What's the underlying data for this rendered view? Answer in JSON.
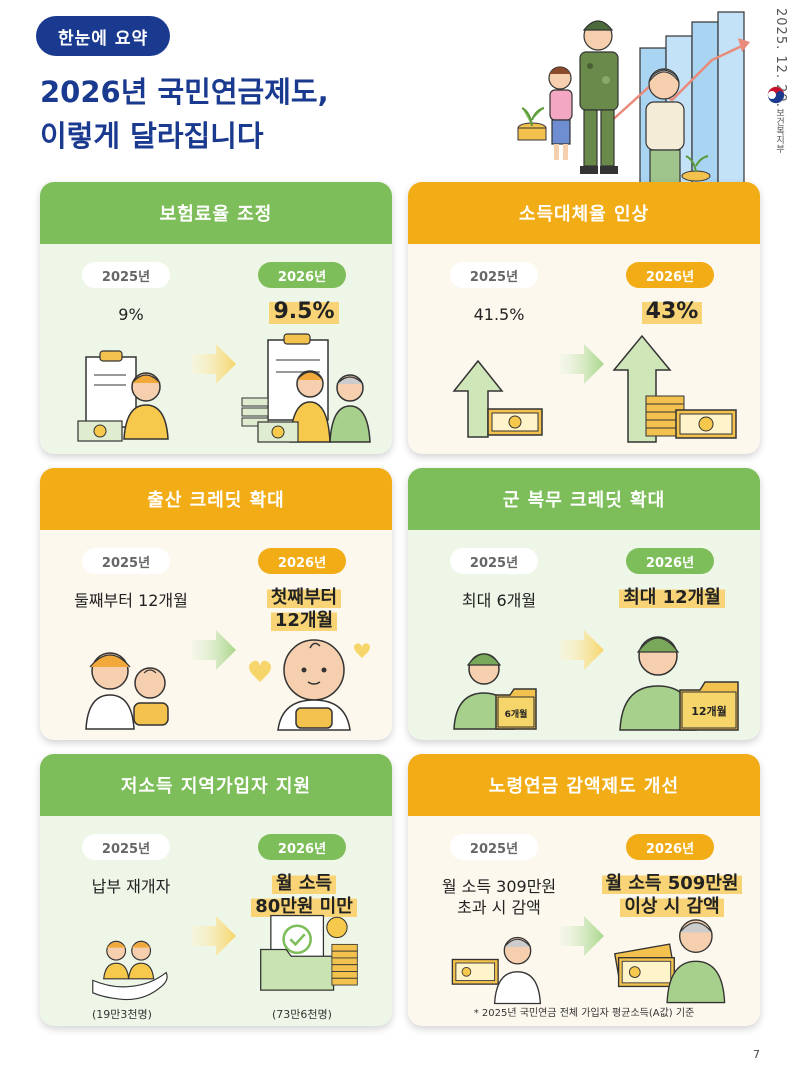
{
  "header": {
    "badge": "한눈에 요약",
    "title_line1": "2026년 국민연금제도,",
    "title_line2": "이렇게 달라집니다",
    "date": "2025. 12. 29.",
    "ministry": "보건복지부"
  },
  "year_old": "2025년",
  "year_new": "2026년",
  "cards": [
    {
      "title": "보험료율 조정",
      "old": "9%",
      "new": "9.5%"
    },
    {
      "title": "소득대체율 인상",
      "old": "41.5%",
      "new": "43%"
    },
    {
      "title": "출산 크레딧 확대",
      "old": "둘째부터 12개월",
      "new_line1": "첫째부터",
      "new_line2": "12개월"
    },
    {
      "title": "군 복무 크레딧 확대",
      "old": "최대 6개월",
      "new": "최대 12개월",
      "folder_old": "6개월",
      "folder_new": "12개월"
    },
    {
      "title": "저소득 지역가입자 지원",
      "old": "납부 재개자",
      "new_line1": "월 소득",
      "new_line2": "80만원 미만",
      "count_old": "(19만3천명)",
      "count_new": "(73만6천명)"
    },
    {
      "title": "노령연금 감액제도 개선",
      "old_line1": "월 소득 309만원",
      "old_line2": "초과 시 감액",
      "new_line1": "월 소득 509만원",
      "new_line2": "이상 시 감액",
      "footnote": "* 2025년 국민연금 전체 가입자 평균소득(A값) 기준"
    }
  ],
  "page_number": "7",
  "colors": {
    "navy": "#1a3a8f",
    "green": "#7dbe5a",
    "orange": "#f2ac15",
    "highlight": "#f8d476"
  },
  "icons": [
    "document-person-icon",
    "documents-family-icon",
    "arrow-up-money-icon",
    "arrow-up-coins-money-icon",
    "parent-baby-icon",
    "baby-icon",
    "soldier-folder-icon",
    "hand-people-icon",
    "folder-check-coins-icon",
    "elder-money-icon",
    "elder-money-stack-icon",
    "right-arrow-icon"
  ]
}
